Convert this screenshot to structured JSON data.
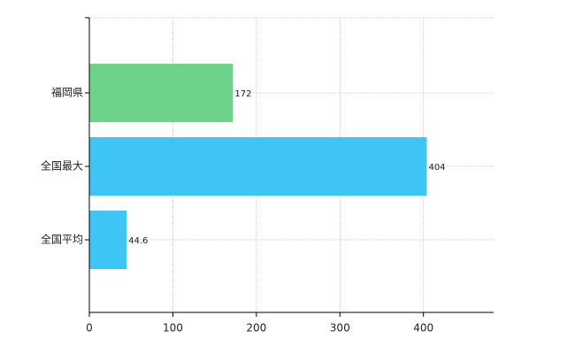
{
  "chart_data": {
    "type": "bar",
    "orientation": "horizontal",
    "categories": [
      "福岡県",
      "全国最大",
      "全国平均"
    ],
    "values": [
      172,
      404,
      44.6
    ],
    "colors": [
      "#6dd38b",
      "#3ec5f5",
      "#3ec5f5"
    ],
    "xlim": [
      0,
      484
    ],
    "xticks": [
      0,
      100,
      200,
      300,
      400
    ],
    "grid": true
  }
}
